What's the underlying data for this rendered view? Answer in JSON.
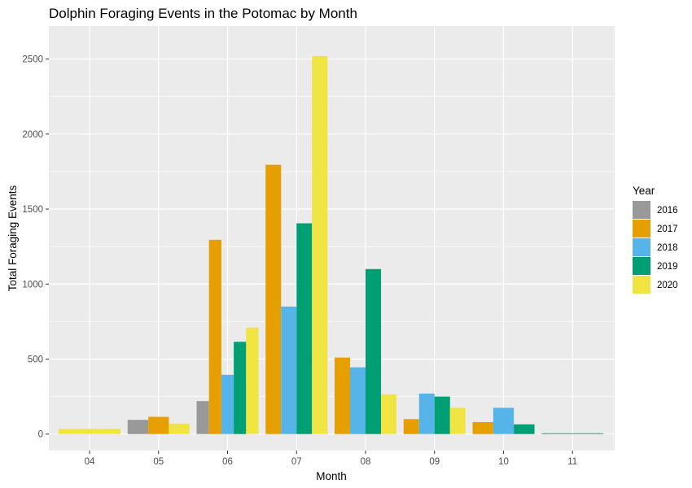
{
  "chart_data": {
    "type": "bar",
    "title": "Dolphin Foraging Events in the Potomac by Month",
    "xlabel": "Month",
    "ylabel": "Total Foraging Events",
    "categories": [
      "04",
      "05",
      "06",
      "07",
      "08",
      "09",
      "10",
      "11"
    ],
    "yticks": [
      0,
      500,
      1000,
      1500,
      2000,
      2500
    ],
    "ylim": [
      -110,
      2720
    ],
    "grid": true,
    "legend": {
      "title": "Year",
      "placement": "right"
    },
    "series": [
      {
        "name": "2016",
        "color": "#999999",
        "values": [
          null,
          95,
          220,
          null,
          null,
          null,
          null,
          null
        ]
      },
      {
        "name": "2017",
        "color": "#E69F00",
        "values": [
          null,
          115,
          1295,
          1795,
          510,
          100,
          80,
          null
        ]
      },
      {
        "name": "2018",
        "color": "#56B4E9",
        "values": [
          null,
          null,
          395,
          850,
          445,
          270,
          175,
          null
        ]
      },
      {
        "name": "2019",
        "color": "#009E73",
        "values": [
          null,
          null,
          615,
          1405,
          1100,
          250,
          65,
          5
        ]
      },
      {
        "name": "2020",
        "color": "#F0E442",
        "values": [
          35,
          70,
          710,
          2520,
          265,
          175,
          null,
          null
        ]
      }
    ]
  }
}
